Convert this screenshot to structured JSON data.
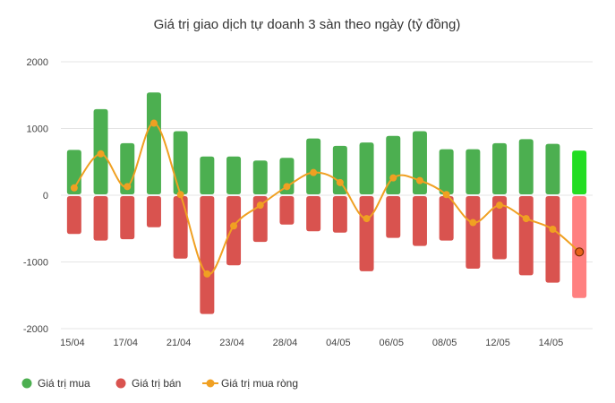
{
  "chart_data": {
    "type": "bar",
    "title": "Giá trị giao dịch tự doanh 3 sàn theo ngày (tỷ đồng)",
    "ylim": [
      -2000,
      2000
    ],
    "yticks": [
      2000,
      1000,
      0,
      -1000,
      -2000
    ],
    "ytick_labels": [
      "2000",
      "1000",
      "0",
      "-1000",
      "-2000"
    ],
    "xtick_labels": [
      "15/04",
      "17/04",
      "21/04",
      "23/04",
      "28/04",
      "04/05",
      "06/05",
      "08/05",
      "12/05",
      "14/05"
    ],
    "xtick_indices": [
      0,
      2,
      4,
      6,
      8,
      10,
      12,
      14,
      16,
      18
    ],
    "grid": true,
    "legend_position": "bottom-left",
    "colors": {
      "buy": "#4caf50",
      "sell": "#d9534f",
      "net": "#f0a022",
      "buy_highlight": "#22dd22",
      "sell_highlight": "#ff8080",
      "net_highlight": "#e8631a"
    },
    "series": [
      {
        "name": "Giá trị mua",
        "values": [
          680,
          1290,
          780,
          1540,
          960,
          580,
          580,
          520,
          560,
          850,
          740,
          790,
          890,
          960,
          690,
          690,
          780,
          840,
          770,
          670
        ]
      },
      {
        "name": "Giá trị bán",
        "values": [
          -580,
          -680,
          -660,
          -480,
          -950,
          -1780,
          -1050,
          -700,
          -440,
          -540,
          -560,
          -1140,
          -640,
          -760,
          -680,
          -1100,
          -960,
          -1200,
          -1310,
          -1540
        ]
      },
      {
        "name": "Giá trị mua ròng",
        "values": [
          110,
          620,
          130,
          1080,
          10,
          -1180,
          -460,
          -150,
          130,
          340,
          190,
          -350,
          260,
          220,
          10,
          -410,
          -150,
          -350,
          -510,
          -850
        ]
      }
    ]
  }
}
